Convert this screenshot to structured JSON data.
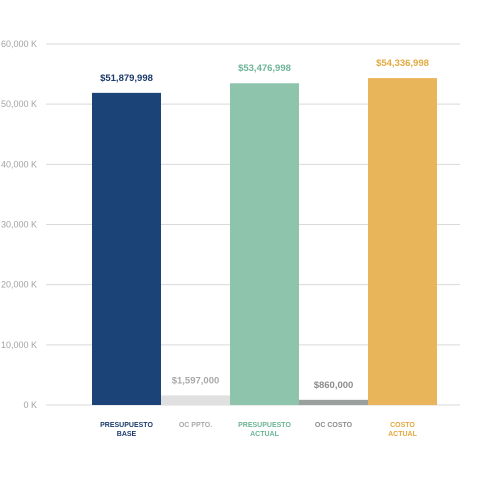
{
  "chart_data": {
    "type": "bar",
    "title": "",
    "xlabel": "",
    "ylabel": "",
    "ylim": [
      0,
      60000000
    ],
    "yticks": [
      {
        "value": 0,
        "label": "0 K"
      },
      {
        "value": 10000000,
        "label": "10,000 K"
      },
      {
        "value": 20000000,
        "label": "20,000 K"
      },
      {
        "value": 30000000,
        "label": "30,000 K"
      },
      {
        "value": 40000000,
        "label": "40,000 K"
      },
      {
        "value": 50000000,
        "label": "50,000 K"
      },
      {
        "value": 60000000,
        "label": "60,000 K"
      }
    ],
    "grid": true,
    "bars": [
      {
        "category": [
          "PRESUPUESTO",
          "BASE"
        ],
        "value": 51879998,
        "value_label": "$51,879,998",
        "color": "#1b4377",
        "label_color": "#1b3a6b"
      },
      {
        "category": [
          "OC PPTO."
        ],
        "value": 1597000,
        "value_label": "$1,597,000",
        "color": "#e0e0e0",
        "label_color": "#a9a9a9"
      },
      {
        "category": [
          "PRESUPUESTO",
          "ACTUAL"
        ],
        "value": 53476998,
        "value_label": "$53,476,998",
        "color": "#8dc4ab",
        "label_color": "#6db596"
      },
      {
        "category": [
          "OC COSTO"
        ],
        "value": 860000,
        "value_label": "$860,000",
        "color": "#9aa09e",
        "label_color": "#8c8c8c"
      },
      {
        "category": [
          "COSTO",
          "ACTUAL"
        ],
        "value": 54336998,
        "value_label": "$54,336,998",
        "color": "#e8b55a",
        "label_color": "#e2a93f"
      }
    ]
  }
}
